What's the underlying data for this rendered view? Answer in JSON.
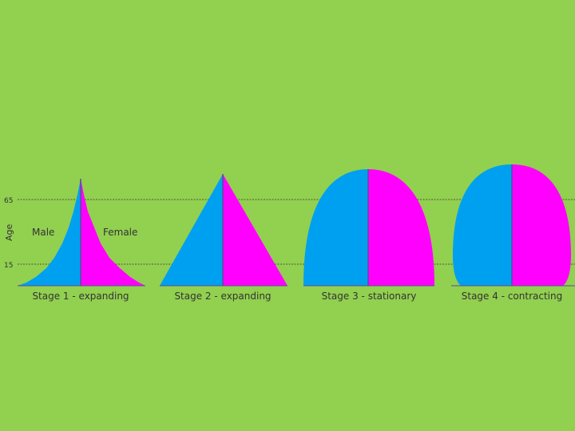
{
  "axis": {
    "label": "Age",
    "ticks": [
      "65",
      "15"
    ]
  },
  "legend": {
    "male": "Male",
    "female": "Female"
  },
  "pyramids": [
    {
      "caption": "Stage 1 - expanding"
    },
    {
      "caption": "Stage 2 - expanding"
    },
    {
      "caption": "Stage 3 - stationary"
    },
    {
      "caption": "Stage 4 - contracting"
    }
  ],
  "colors": {
    "background": "#92d050",
    "male": "#00a0f0",
    "female": "#ff00ff",
    "axis_line": "#5a4a9a",
    "text": "#333333"
  }
}
